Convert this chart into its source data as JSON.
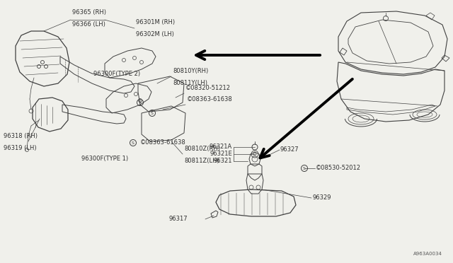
{
  "bg_color": "#f0f0eb",
  "line_color": "#404040",
  "text_color": "#303030",
  "part_code": "A963A0034",
  "labels": {
    "96365_rh": "96365 (RH)",
    "96366_lh": "96366 (LH)",
    "96301m_rh": "96301M (RH)",
    "96302m_lh": "96302M (LH)",
    "96300f_type2": "96300F(TYPE 2)",
    "80810y_rh": "80810Y(RH)",
    "80811y_lh": "80811Y(LH)",
    "08320": "©08320-51212",
    "08363a": "©08363-61638",
    "96318_rh": "96318 (RH)",
    "96319_lh": "96319 (LH)",
    "08363b": "©08363-61638",
    "96300f_type1": "96300F(TYPE 1)",
    "80810z_rh": "80810Z(RH)",
    "80811z_lh": "80811Z(LH)",
    "96317": "96317",
    "96321a": "96321A",
    "96321e": "96321E",
    "96321": "96321",
    "96327": "96327",
    "08530": "©08530-52012",
    "96329": "96329"
  },
  "font_size": 6.0,
  "font_family": "DejaVu Sans"
}
